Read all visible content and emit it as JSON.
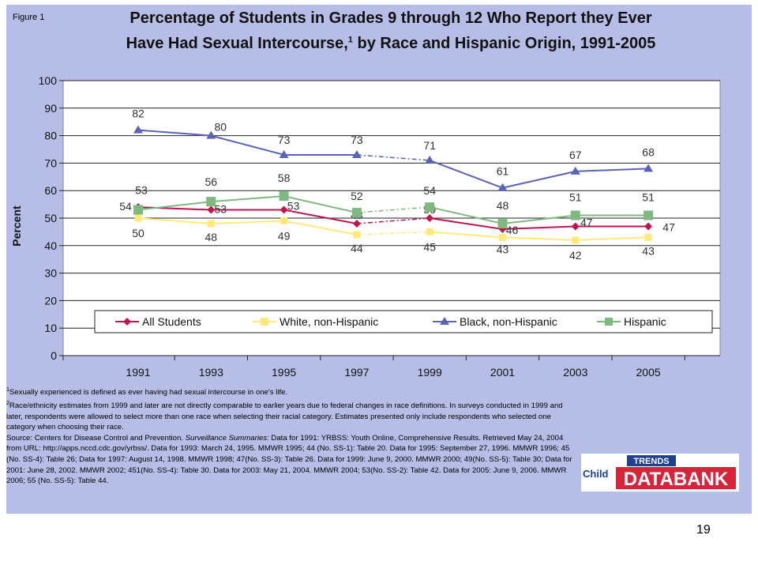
{
  "figure_label": "Figure 1",
  "title_line1": "Percentage of Students in Grades 9 through 12 Who Report they Ever",
  "title_line2_a": "Have Had Sexual Intercourse,",
  "title_line2_sup": "1",
  "title_line2_b": " by Race and Hispanic Origin, 1991-2005",
  "chart_data": {
    "type": "line",
    "ylabel": "Percent",
    "xlabel": "",
    "ylim": [
      0,
      100
    ],
    "yticks": [
      0,
      10,
      20,
      30,
      40,
      50,
      60,
      70,
      80,
      90,
      100
    ],
    "categories": [
      "1991",
      "1993",
      "1995",
      "1997",
      "1999",
      "2001",
      "2003",
      "2005"
    ],
    "series": [
      {
        "name": "All Students",
        "values": [
          54,
          53,
          53,
          48,
          50,
          46,
          47,
          47
        ],
        "color": "#c0144b",
        "marker": "diamond"
      },
      {
        "name": "White, non-Hispanic",
        "values": [
          50,
          48,
          49,
          44,
          45,
          43,
          42,
          43
        ],
        "color": "#ffe97a",
        "marker": "square"
      },
      {
        "name": "Black, non-Hispanic",
        "values": [
          82,
          80,
          73,
          73,
          71,
          61,
          67,
          68
        ],
        "color": "#5a63b8",
        "marker": "triangle"
      },
      {
        "name": "Hispanic",
        "values": [
          53,
          56,
          58,
          52,
          54,
          48,
          51,
          51
        ],
        "color": "#7fb97f",
        "marker": "square"
      }
    ],
    "legend_position": "bottom-inside",
    "grid": "horizontal",
    "dashed_segment": "1997-1999"
  },
  "notes": {
    "n1": "Sexually experienced is defined as ever having had sexual intercourse in one's life.",
    "n2": "Race/ethnicity estimates from 1999 and later are not directly comparable to earlier years due to federal changes in race definitions. In surveys conducted in 1999 and later, respondents were allowed to select more than one race when selecting their racial category. Estimates presented only include respondents who selected one category when choosing their race.",
    "source_a": "Source: Centers for Disease Control and Prevention. ",
    "source_em": "Surveillance Summaries:",
    "source_b": " Data for 1991: YRBSS: Youth Online, Comprehensive Results. Retrieved May 24, 2004 from URL: http://apps.nccd.cdc.gov/yrbss/. Data for 1993: March 24, 1995. MMWR 1995; 44 (No. SS-1): Table 20. Data for 1995: September 27, 1996. MMWR 1996; 45 (No. SS-4): Table 26; Data for 1997: August 14, 1998. MMWR 1998; 47(No. SS-3): Table 26. Data for 1999: June 9, 2000. MMWR 2000; 49(No. SS-5): Table 30; Data for 2001: June 28, 2002. MMWR 2002; 451(No. SS-4): Table 30. Data for 2003: May 21, 2004. MMWR 2004; 53(No. SS-2): Table 42. Data for 2005: June 9, 2006. MMWR 2006; 55 (No. SS-5): Table 44."
  },
  "logo": {
    "word1": "TRENDS",
    "word2": "Child",
    "word3": "DATABANK",
    "primary": "#d6243a",
    "blue": "#1f3f8f"
  },
  "page_number": "19"
}
